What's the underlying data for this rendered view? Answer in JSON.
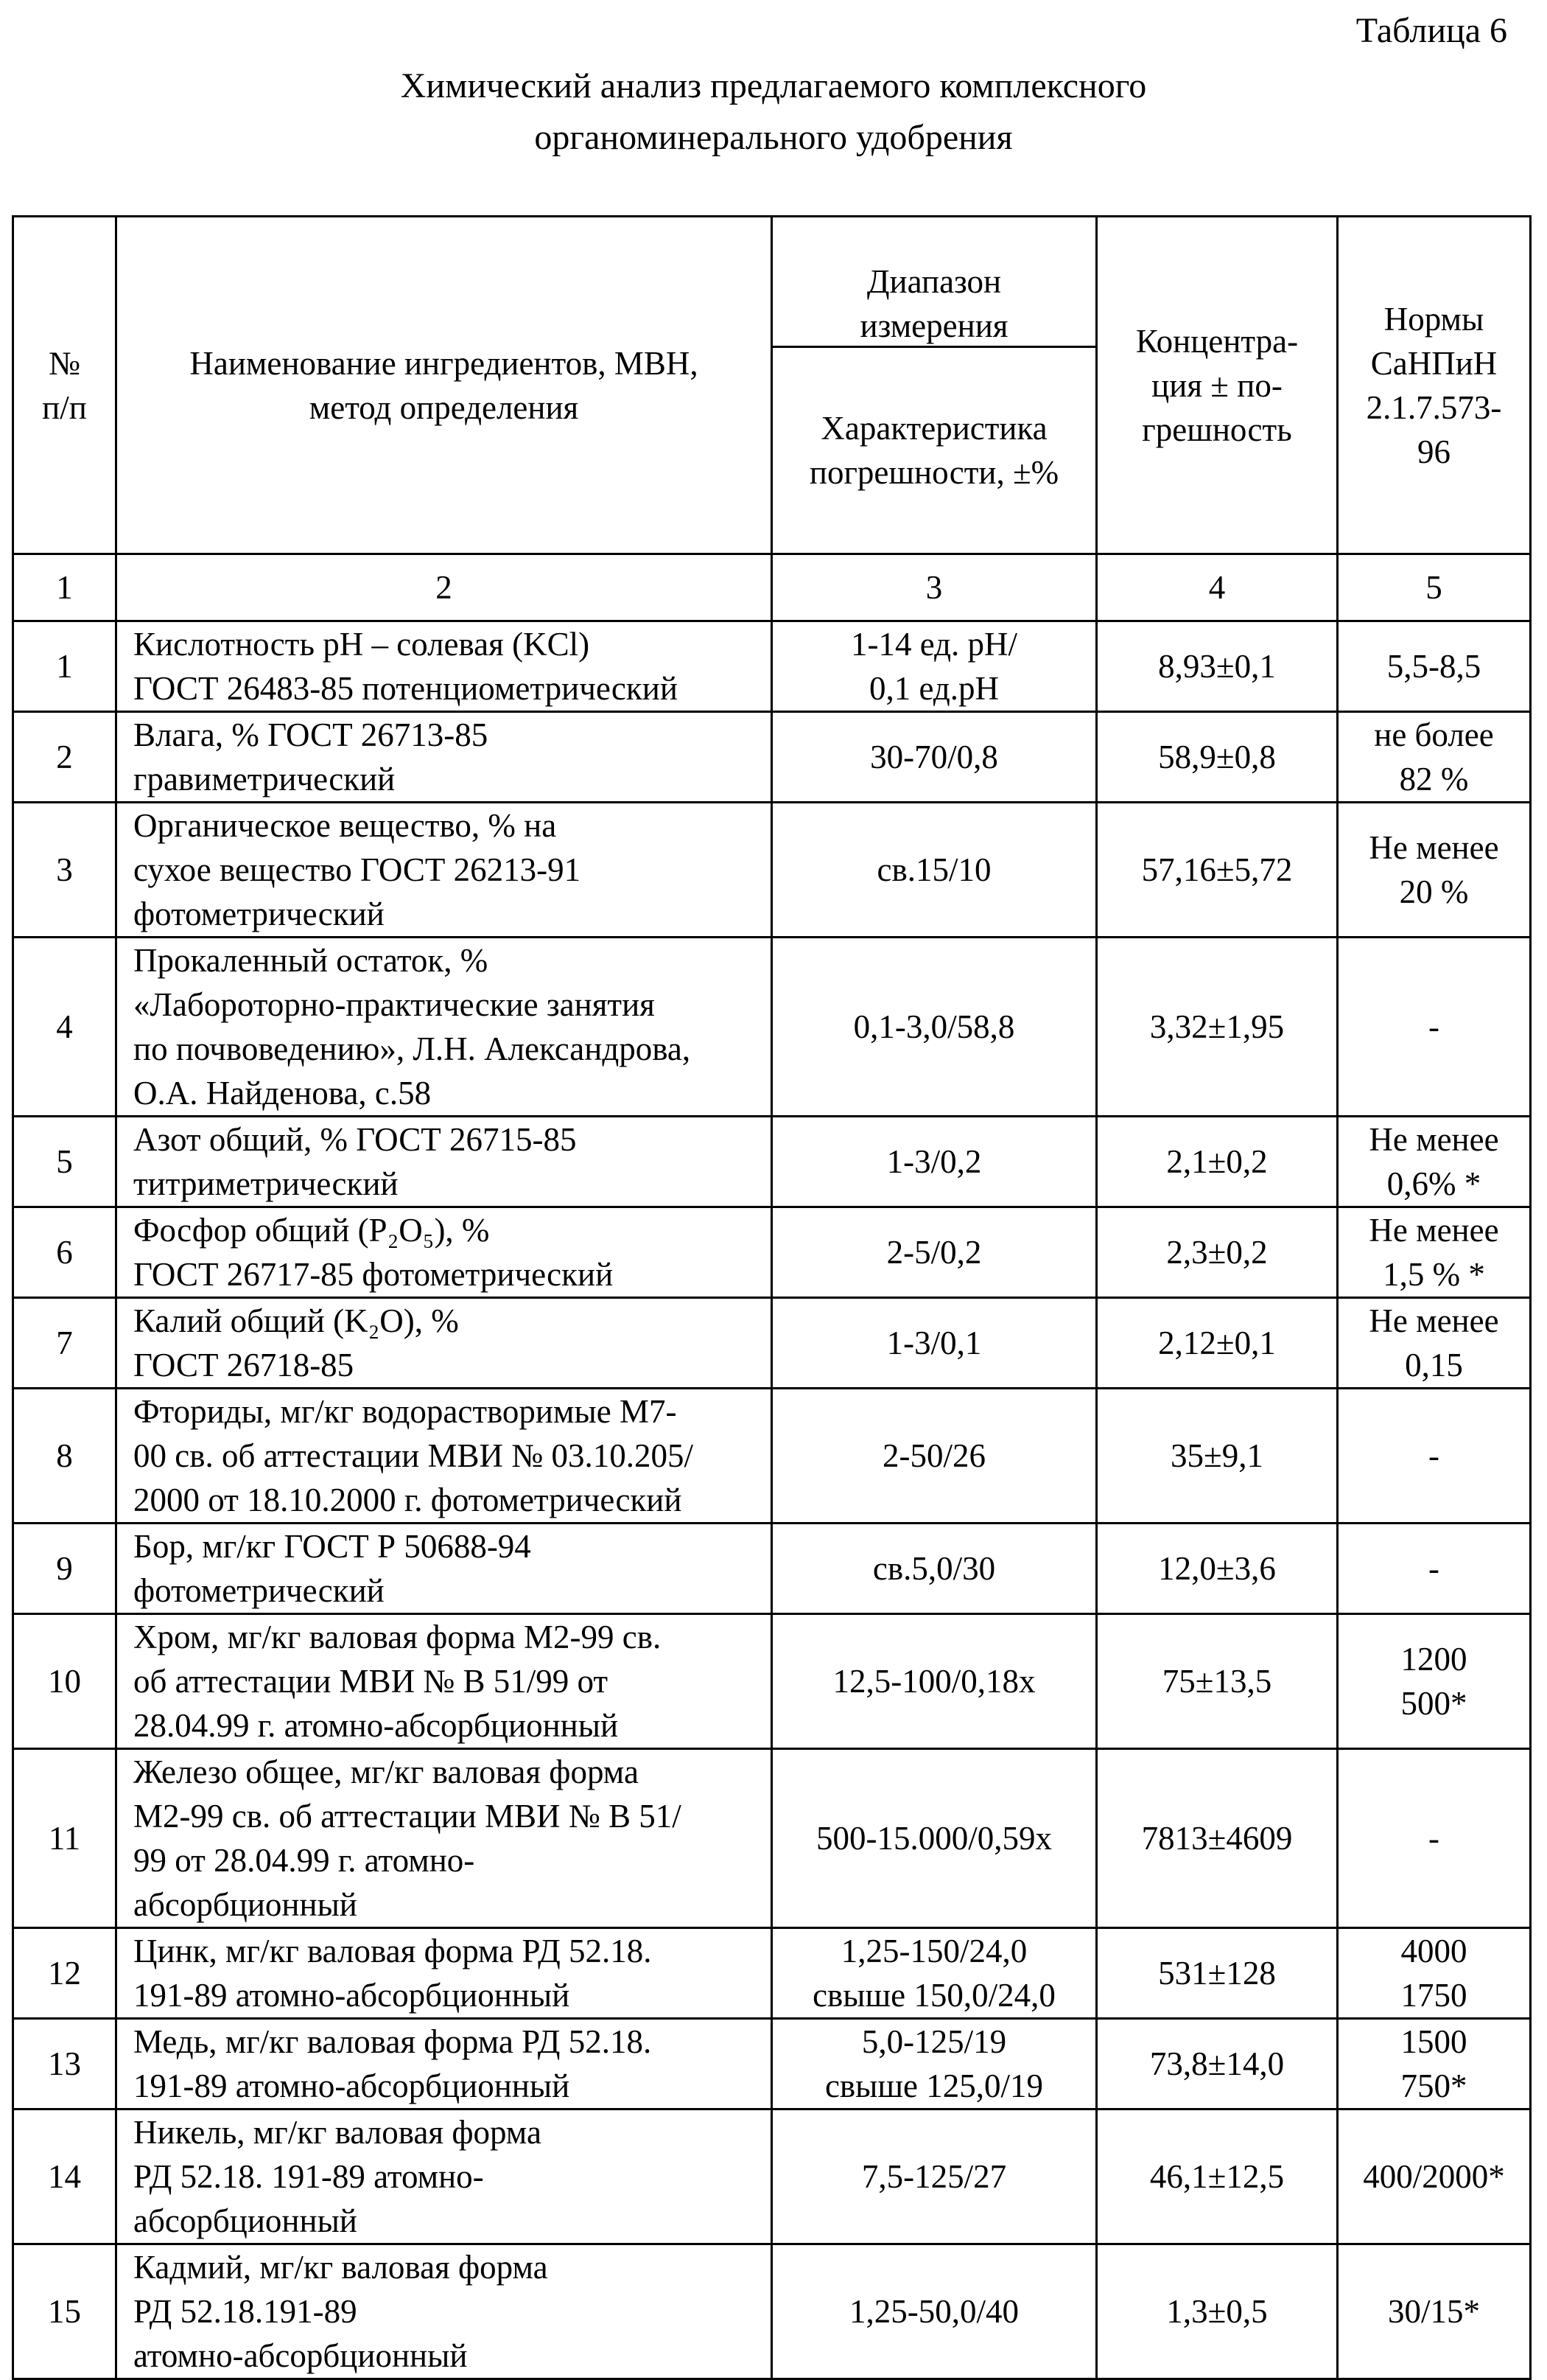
{
  "table_number": "Таблица 6",
  "title": "Химический анализ предлагаемого комплексного\nорганоминерального удобрения",
  "header": {
    "num": "№\nп/п",
    "name": "Наименование ингредиентов, МВН,\nметод определения",
    "range": "Диапазон\nизмерения",
    "error": "Характеристика\nпогрешности, ±%",
    "conc": "Концентра-\nция ± по-\nгрешность",
    "norms": "Нормы\nСаНПиН\n2.1.7.573-\n96"
  },
  "col_numbers": [
    "1",
    "2",
    "3",
    "4",
    "5"
  ],
  "rows": [
    {
      "n": "1",
      "name": "Кислотность pH – солевая (KCl)\nГОСТ 26483-85 потенциометрический",
      "range": "1-14 ед. pH/\n0,1 ед.pH",
      "conc": "8,93±0,1",
      "norm": "5,5-8,5"
    },
    {
      "n": "2",
      "name": "Влага, % ГОСТ 26713-85\nгравиметрический",
      "range": "30-70/0,8",
      "conc": "58,9±0,8",
      "norm": "не более\n82 %"
    },
    {
      "n": "3",
      "name": "Органическое вещество, % на\nсухое вещество ГОСТ 26213-91\nфотометрический",
      "range": "св.15/10",
      "conc": "57,16±5,72",
      "norm": "Не менее\n20 %"
    },
    {
      "n": "4",
      "name": "Прокаленный остаток, %\n«Лабороторно-практические занятия\nпо почвоведению», Л.Н. Александрова,\nО.А. Найденова, с.58",
      "range": "0,1-3,0/58,8",
      "conc": "3,32±1,95",
      "norm": "-"
    },
    {
      "n": "5",
      "name": "Азот общий, % ГОСТ 26715-85\nтитриметрический",
      "range": "1-3/0,2",
      "conc": "2,1±0,2",
      "norm": "Не менее\n0,6% *"
    },
    {
      "n": "6",
      "name": "Фосфор общий (P₂O₅), %\nГОСТ 26717-85 фотометрический",
      "range": "2-5/0,2",
      "conc": "2,3±0,2",
      "norm": "Не менее\n1,5 % *"
    },
    {
      "n": "7",
      "name": "Калий общий (K₂O), %\nГОСТ 26718-85",
      "range": "1-3/0,1",
      "conc": "2,12±0,1",
      "norm": "Не менее\n0,15"
    },
    {
      "n": "8",
      "name": "Фториды, мг/кг водорастворимые М7-\n00 св. об аттестации МВИ № 03.10.205/\n2000 от 18.10.2000 г. фотометрический",
      "range": "2-50/26",
      "conc": "35±9,1",
      "norm": "-"
    },
    {
      "n": "9",
      "name": "Бор, мг/кг ГОСТ Р 50688-94\nфотометрический",
      "range": "св.5,0/30",
      "conc": "12,0±3,6",
      "norm": "-"
    },
    {
      "n": "10",
      "name": "Хром, мг/кг валовая форма М2-99 св.\nоб аттестации МВИ № В 51/99 от\n28.04.99 г. атомно-абсорбционный",
      "range": "12,5-100/0,18x",
      "conc": "75±13,5",
      "norm": "1200\n500*"
    },
    {
      "n": "11",
      "name": "Железо общее, мг/кг валовая форма\nМ2-99 св. об аттестации МВИ № В 51/\n99 от 28.04.99 г. атомно-\nабсорбционный",
      "range": "500-15.000/0,59x",
      "conc": "7813±4609",
      "norm": "-"
    },
    {
      "n": "12",
      "name": "Цинк, мг/кг валовая форма РД 52.18.\n191-89 атомно-абсорбционный",
      "range": "1,25-150/24,0\nсвыше 150,0/24,0",
      "conc": "531±128",
      "norm": "4000\n1750"
    },
    {
      "n": "13",
      "name": "Медь, мг/кг валовая форма РД 52.18.\n191-89 атомно-абсорбционный",
      "range": "5,0-125/19\nсвыше 125,0/19",
      "conc": "73,8±14,0",
      "norm": "1500\n750*"
    },
    {
      "n": "14",
      "name": "Никель, мг/кг валовая форма\nРД 52.18. 191-89 атомно-\nабсорбционный",
      "range": "7,5-125/27",
      "conc": "46,1±12,5",
      "norm": "400/2000*"
    },
    {
      "n": "15",
      "name": "Кадмий, мг/кг валовая форма\nРД 52.18.191-89\nатомно-абсорбционный",
      "range": "1,25-50,0/40",
      "conc": "1,3±0,5",
      "norm": "30/15*"
    }
  ]
}
